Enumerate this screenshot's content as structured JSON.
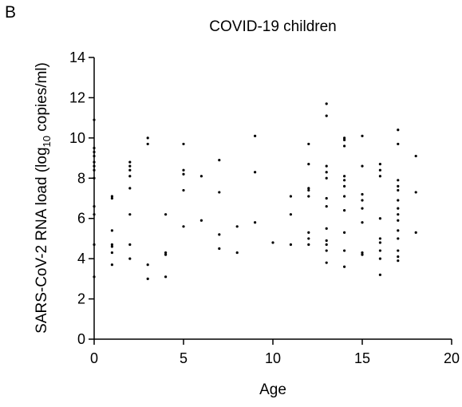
{
  "panel_label": "B",
  "chart_data": {
    "type": "scatter",
    "title": "COVID-19 children",
    "xlabel": "Age",
    "ylabel_main": "SARS-CoV-2 RNA load (log",
    "ylabel_sub": "10",
    "ylabel_end": " copies/ml)",
    "xlim": [
      0,
      20
    ],
    "ylim": [
      0,
      14
    ],
    "x_ticks": [
      0,
      5,
      10,
      15,
      20
    ],
    "y_ticks": [
      0,
      2,
      4,
      6,
      8,
      10,
      12,
      14
    ],
    "grid": false,
    "legend": "none",
    "point_color": "#000000",
    "points": [
      [
        0,
        3.1
      ],
      [
        0,
        4.7
      ],
      [
        0,
        6.2
      ],
      [
        0,
        6.6
      ],
      [
        0,
        8.0
      ],
      [
        0,
        8.4
      ],
      [
        0,
        8.6
      ],
      [
        0,
        8.8
      ],
      [
        0,
        9.1
      ],
      [
        0,
        9.3
      ],
      [
        0,
        9.5
      ],
      [
        0,
        10.9
      ],
      [
        1,
        3.7
      ],
      [
        1,
        4.3
      ],
      [
        1,
        4.6
      ],
      [
        1,
        4.7
      ],
      [
        1,
        5.4
      ],
      [
        1,
        7.0
      ],
      [
        1,
        7.1
      ],
      [
        2,
        4.0
      ],
      [
        2,
        4.7
      ],
      [
        2,
        6.2
      ],
      [
        2,
        7.5
      ],
      [
        2,
        8.1
      ],
      [
        2,
        8.4
      ],
      [
        2,
        8.6
      ],
      [
        2,
        8.8
      ],
      [
        3,
        3.0
      ],
      [
        3,
        3.7
      ],
      [
        3,
        9.7
      ],
      [
        3,
        10.0
      ],
      [
        4,
        3.1
      ],
      [
        4,
        4.2
      ],
      [
        4,
        4.3
      ],
      [
        4,
        6.2
      ],
      [
        5,
        5.6
      ],
      [
        5,
        7.4
      ],
      [
        5,
        8.2
      ],
      [
        5,
        8.4
      ],
      [
        5,
        9.7
      ],
      [
        6,
        5.9
      ],
      [
        6,
        8.1
      ],
      [
        7,
        4.5
      ],
      [
        7,
        5.2
      ],
      [
        7,
        7.3
      ],
      [
        7,
        8.9
      ],
      [
        8,
        4.3
      ],
      [
        8,
        5.6
      ],
      [
        9,
        5.8
      ],
      [
        9,
        8.3
      ],
      [
        9,
        10.1
      ],
      [
        10,
        4.8
      ],
      [
        11,
        4.7
      ],
      [
        11,
        6.2
      ],
      [
        11,
        7.1
      ],
      [
        12,
        4.7
      ],
      [
        12,
        5.0
      ],
      [
        12,
        5.3
      ],
      [
        12,
        7.1
      ],
      [
        12,
        7.4
      ],
      [
        12,
        7.5
      ],
      [
        12,
        8.7
      ],
      [
        12,
        9.7
      ],
      [
        13,
        3.8
      ],
      [
        13,
        4.4
      ],
      [
        13,
        4.7
      ],
      [
        13,
        4.9
      ],
      [
        13,
        5.5
      ],
      [
        13,
        6.6
      ],
      [
        13,
        7.0
      ],
      [
        13,
        8.0
      ],
      [
        13,
        8.3
      ],
      [
        13,
        8.6
      ],
      [
        13,
        11.1
      ],
      [
        13,
        11.7
      ],
      [
        14,
        3.6
      ],
      [
        14,
        4.4
      ],
      [
        14,
        5.3
      ],
      [
        14,
        6.4
      ],
      [
        14,
        7.1
      ],
      [
        14,
        7.6
      ],
      [
        14,
        7.9
      ],
      [
        14,
        8.1
      ],
      [
        14,
        9.6
      ],
      [
        14,
        9.9
      ],
      [
        14,
        10.0
      ],
      [
        15,
        4.2
      ],
      [
        15,
        4.3
      ],
      [
        15,
        5.8
      ],
      [
        15,
        6.5
      ],
      [
        15,
        6.9
      ],
      [
        15,
        7.2
      ],
      [
        15,
        8.6
      ],
      [
        15,
        10.1
      ],
      [
        16,
        3.2
      ],
      [
        16,
        4.0
      ],
      [
        16,
        4.4
      ],
      [
        16,
        4.8
      ],
      [
        16,
        5.0
      ],
      [
        16,
        6.0
      ],
      [
        16,
        8.1
      ],
      [
        16,
        8.4
      ],
      [
        16,
        8.7
      ],
      [
        17,
        3.9
      ],
      [
        17,
        4.1
      ],
      [
        17,
        4.4
      ],
      [
        17,
        5.0
      ],
      [
        17,
        5.4
      ],
      [
        17,
        5.9
      ],
      [
        17,
        6.2
      ],
      [
        17,
        6.5
      ],
      [
        17,
        6.9
      ],
      [
        17,
        7.4
      ],
      [
        17,
        7.6
      ],
      [
        17,
        7.9
      ],
      [
        17,
        9.7
      ],
      [
        17,
        10.4
      ],
      [
        18,
        5.3
      ],
      [
        18,
        7.3
      ],
      [
        18,
        9.1
      ]
    ]
  }
}
